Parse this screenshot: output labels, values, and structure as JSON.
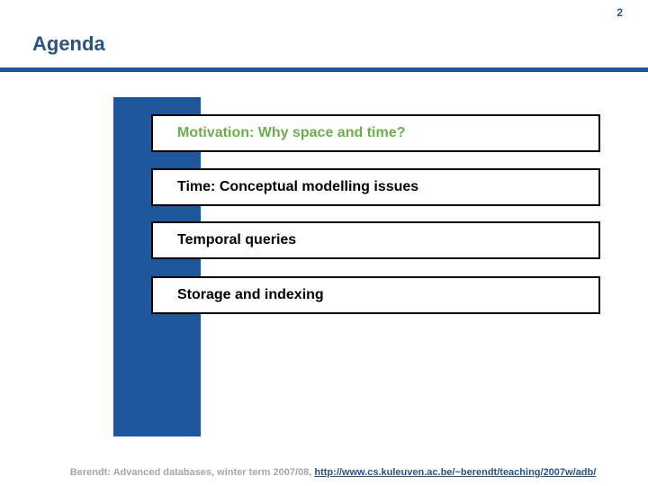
{
  "page": {
    "slide_number": "2",
    "title": "Agenda"
  },
  "colors": {
    "accent_blue": "#1E569C",
    "title_navy": "#2B5380",
    "item_green": "#6EAC4F",
    "footer_gray": "#A7A7A7",
    "box_border": "#000000",
    "text_black": "#000000"
  },
  "agenda_items": [
    {
      "label": "Motivation: Why space and time?",
      "highlighted": true
    },
    {
      "label": "Time: Conceptual modelling issues",
      "highlighted": false
    },
    {
      "label": "Temporal queries",
      "highlighted": false
    },
    {
      "label": "Storage and indexing",
      "highlighted": false
    }
  ],
  "footer": {
    "text": "Berendt: Advanced databases, winter term 2007/08, ",
    "link": "http://www.cs.kuleuven.ac.be/~berendt/teaching/2007w/adb/"
  }
}
